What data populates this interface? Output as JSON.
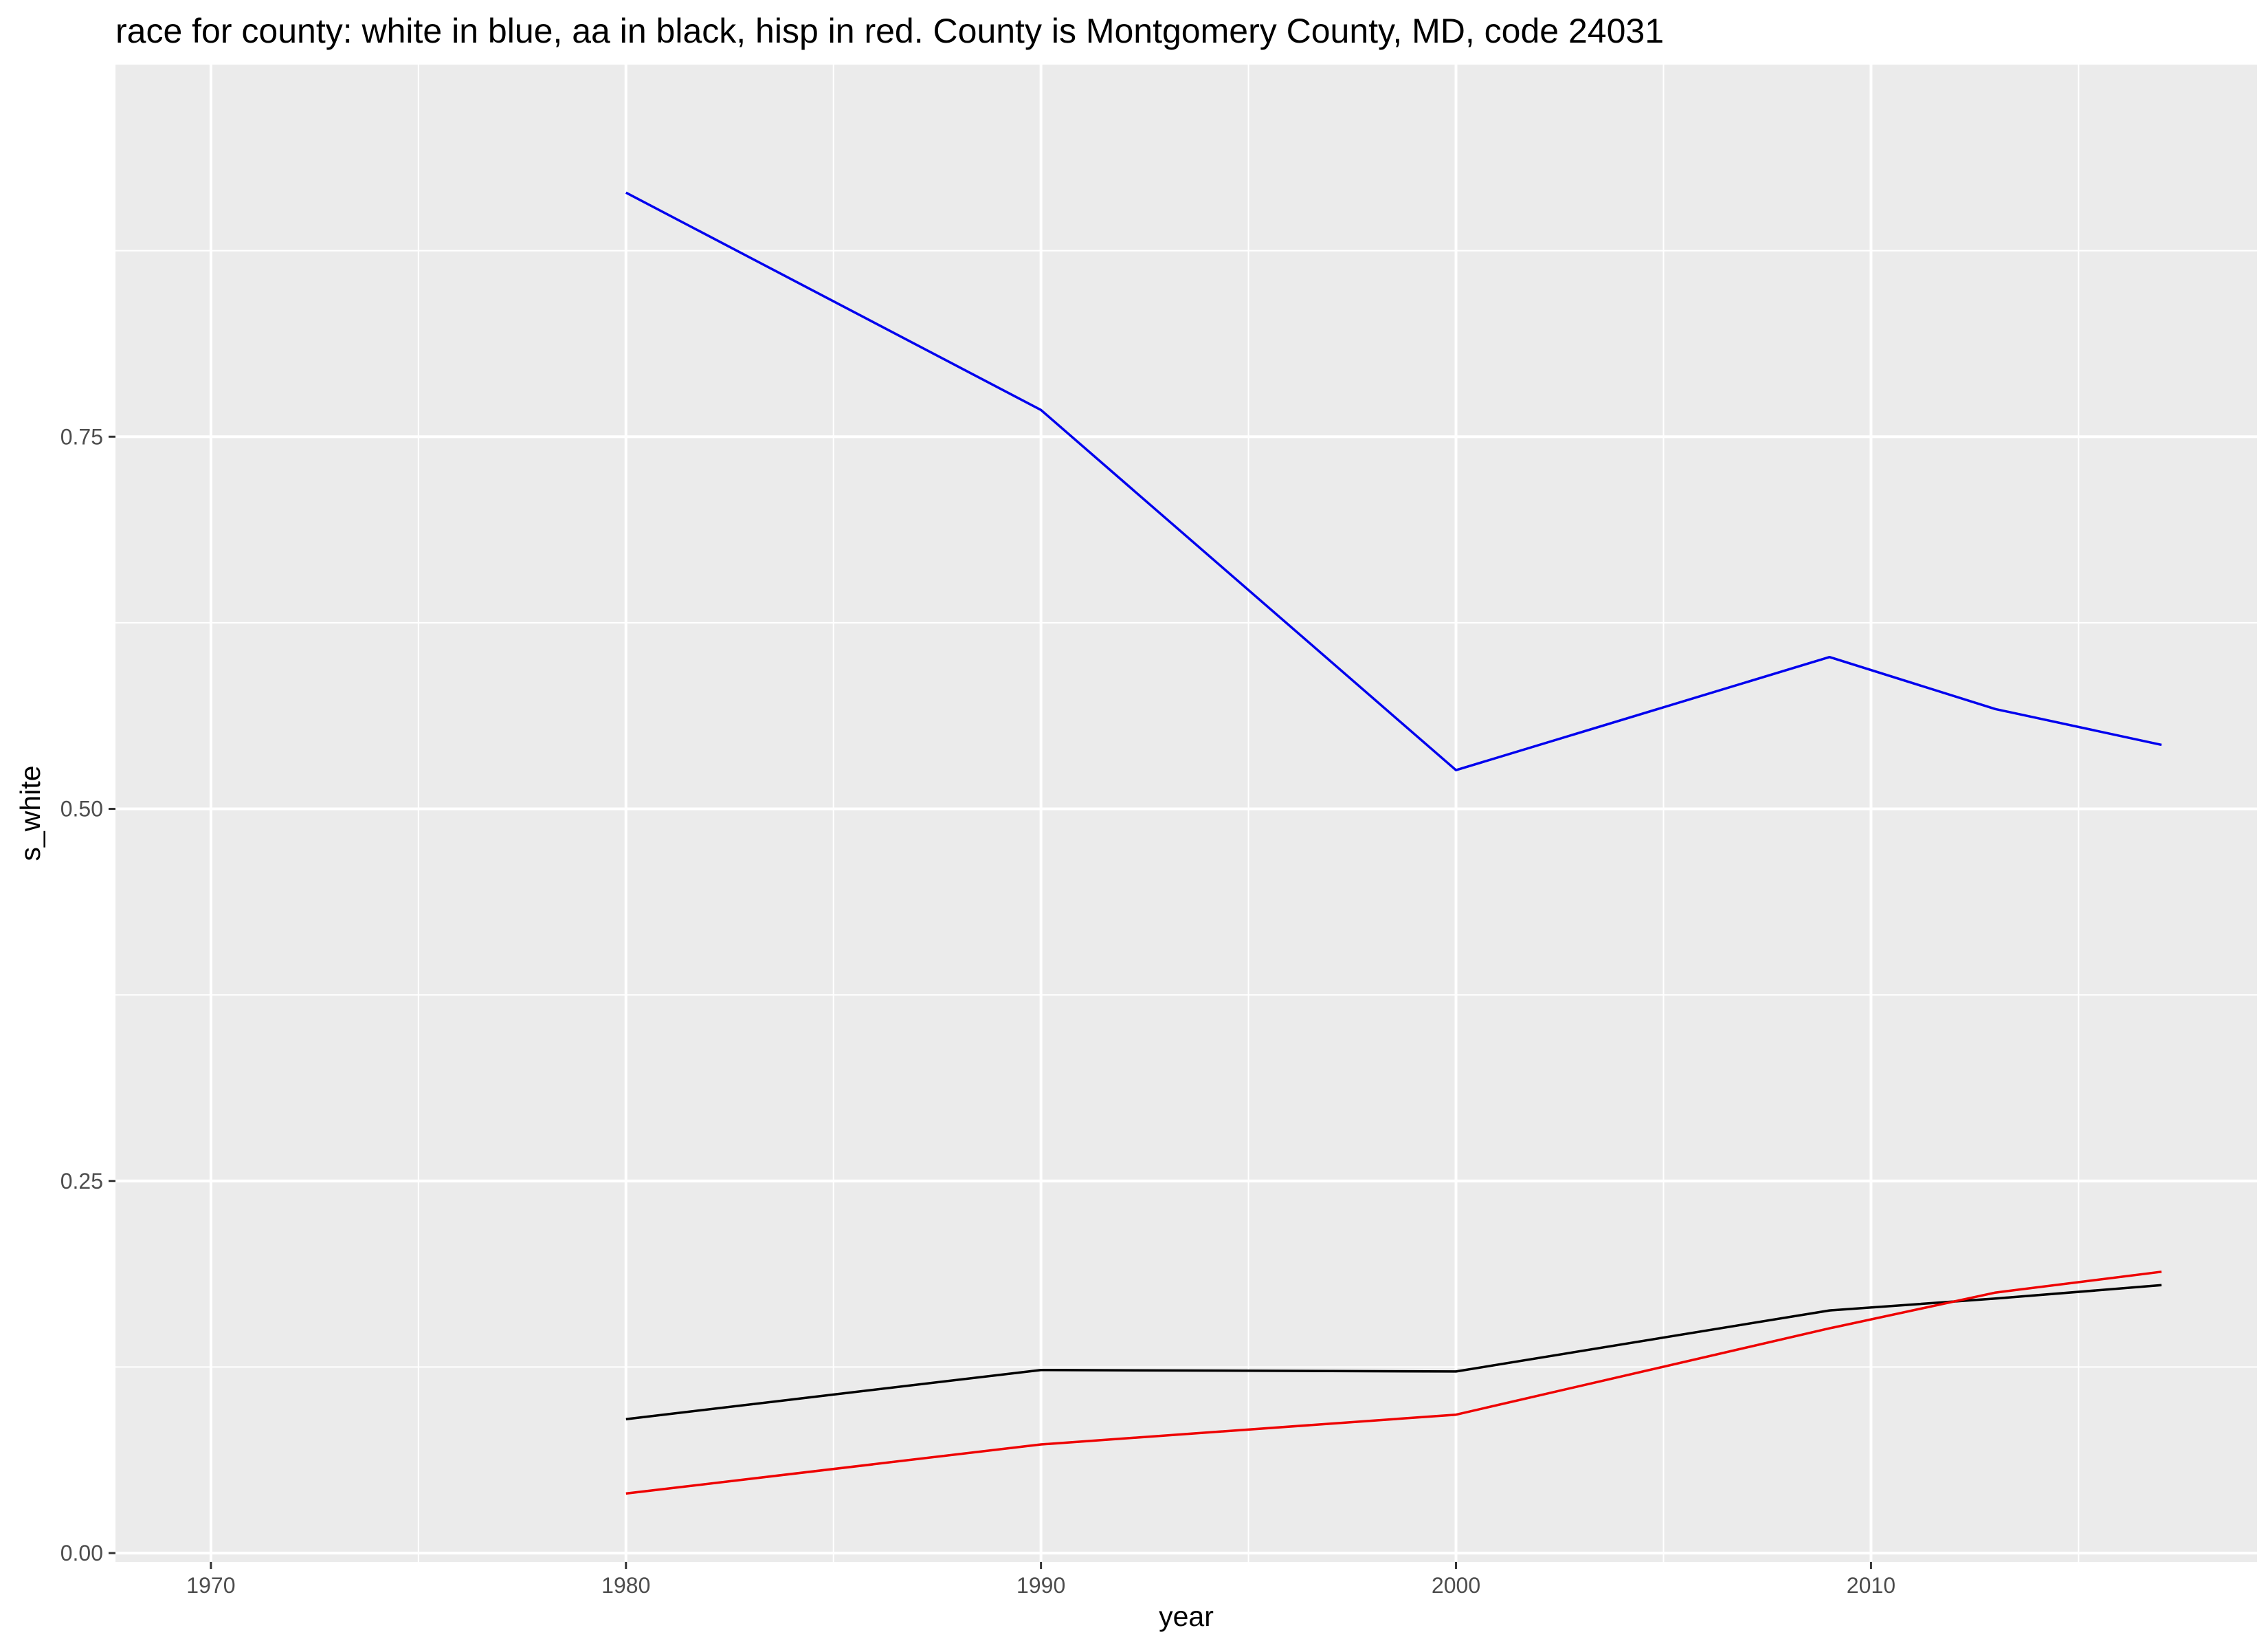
{
  "chart_data": {
    "type": "line",
    "title": "race for county: white in blue, aa in black, hisp in red. County is Montgomery County, MD, code 24031",
    "xlabel": "year",
    "ylabel": "s_white",
    "xlim": [
      1967.7,
      2019.3
    ],
    "ylim": [
      -0.006,
      1.0
    ],
    "x_ticks": [
      1970,
      1980,
      1990,
      2000,
      2010
    ],
    "x_tick_labels": [
      "1970",
      "1980",
      "1990",
      "2000",
      "2010"
    ],
    "x_minor_ticks": [
      1975,
      1985,
      1995,
      2005,
      2015
    ],
    "y_ticks": [
      0,
      0.25,
      0.5,
      0.75
    ],
    "y_tick_labels": [
      "0.00",
      "0.25",
      "0.50",
      "0.75"
    ],
    "y_minor_ticks": [
      0.125,
      0.375,
      0.625,
      0.875
    ],
    "grid": true,
    "legend": "none",
    "colors": {
      "panel_background": "#ebebeb",
      "grid": "#ffffff",
      "axis_tick": "#333333"
    },
    "series": [
      {
        "color": "#0000ee",
        "x": [
          1980,
          1990,
          2000,
          2009,
          2013,
          2017
        ],
        "y": [
          0.914,
          0.768,
          0.526,
          0.602,
          0.567,
          0.543
        ]
      },
      {
        "color": "#000000",
        "x": [
          1980,
          1990,
          2000,
          2009,
          2013,
          2017
        ],
        "y": [
          0.09,
          0.123,
          0.122,
          0.163,
          0.171,
          0.18
        ]
      },
      {
        "color": "#ee0000",
        "x": [
          1980,
          1990,
          2000,
          2009,
          2013,
          2017
        ],
        "y": [
          0.04,
          0.073,
          0.093,
          0.151,
          0.175,
          0.189
        ]
      }
    ]
  }
}
